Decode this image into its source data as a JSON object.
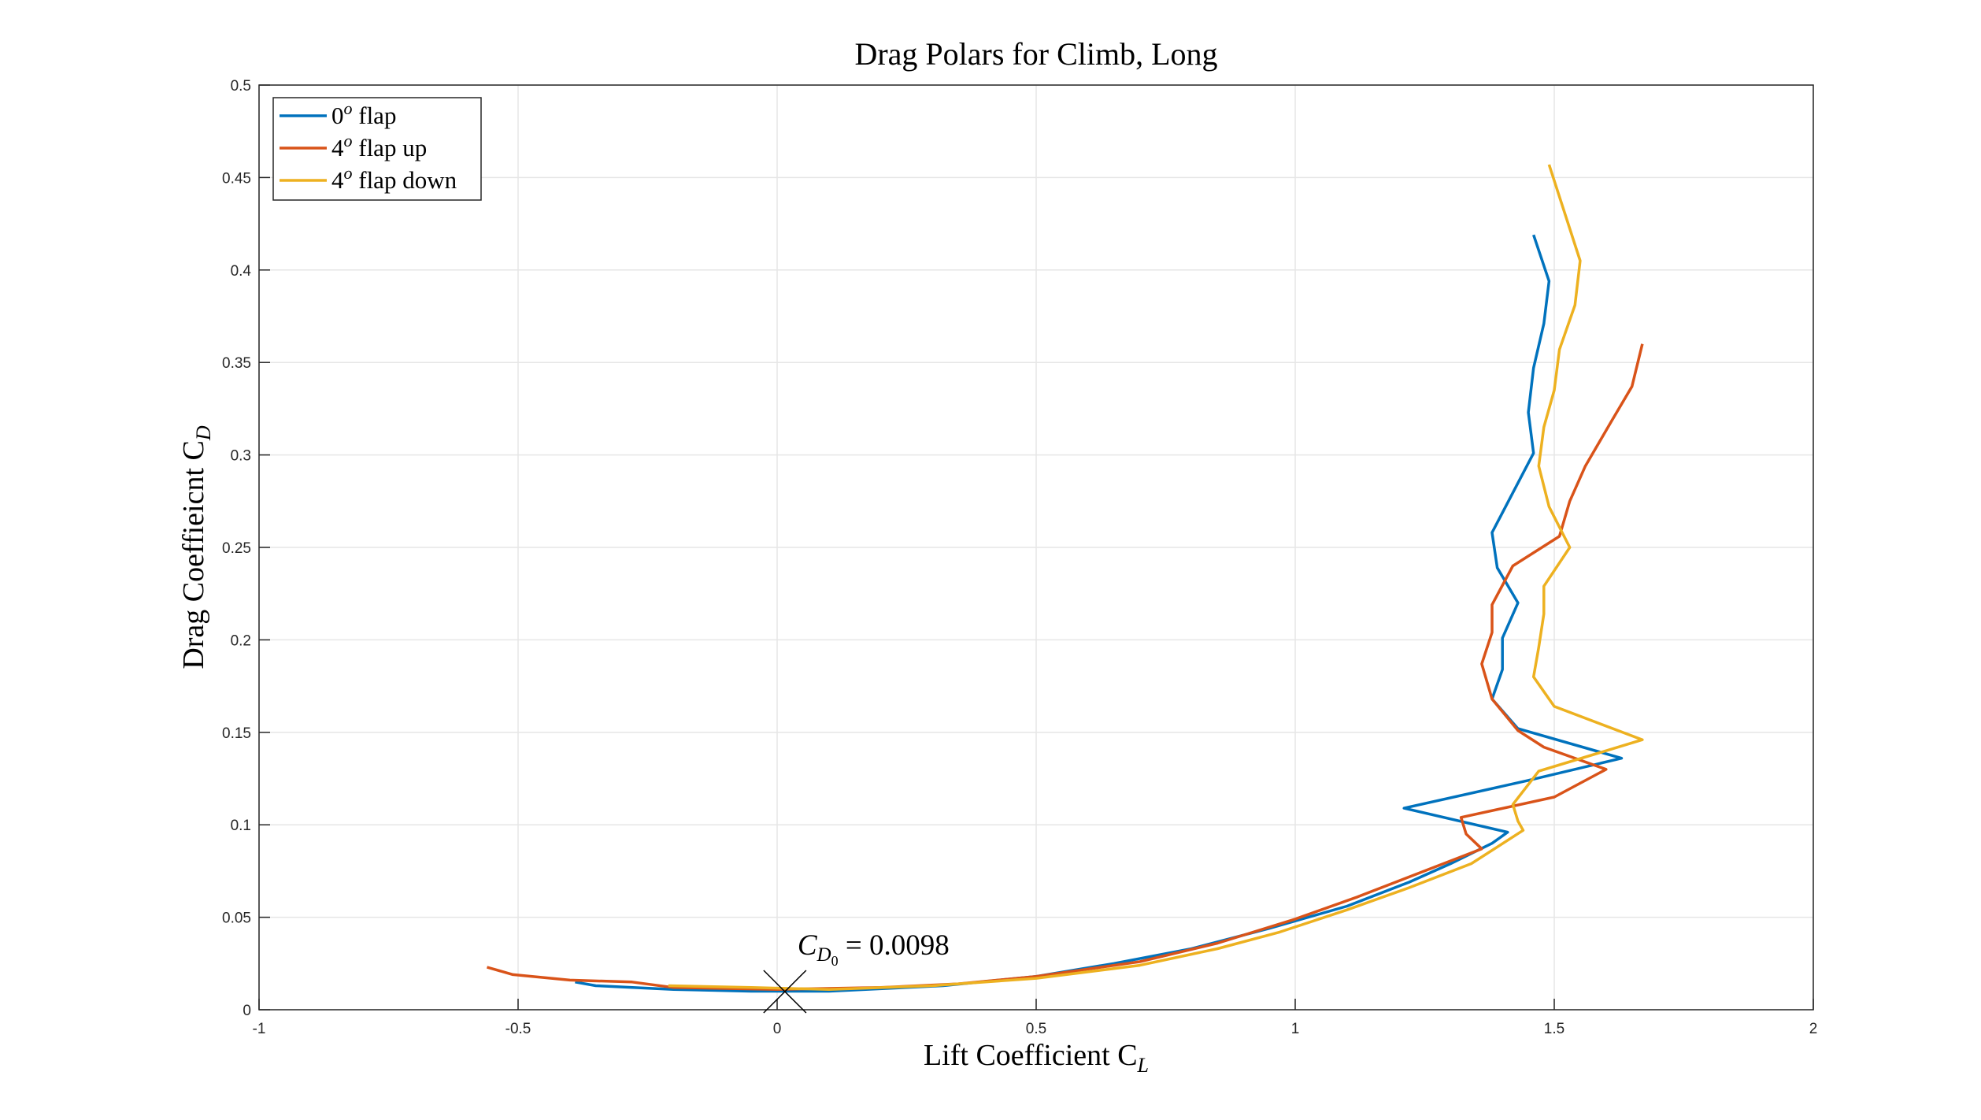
{
  "chart_data": {
    "type": "line",
    "title": "Drag Polars for Climb, Long",
    "xlabel": "Lift Coefficient C",
    "xlabel_sub": "L",
    "ylabel": "Drag Coeffieicnt C",
    "ylabel_sub": "D",
    "xlim": [
      -1,
      2
    ],
    "ylim": [
      0,
      0.5
    ],
    "xticks": [
      -1,
      -0.5,
      0,
      0.5,
      1,
      1.5,
      2
    ],
    "xtick_labels": [
      "-1",
      "-0.5",
      "0",
      "0.5",
      "1",
      "1.5",
      "2"
    ],
    "yticks": [
      0,
      0.05,
      0.1,
      0.15,
      0.2,
      0.25,
      0.3,
      0.35,
      0.4,
      0.45,
      0.5
    ],
    "ytick_labels": [
      "0",
      "0.05",
      "0.1",
      "0.15",
      "0.2",
      "0.25",
      "0.3",
      "0.35",
      "0.4",
      "0.45",
      "0.5"
    ],
    "grid": true,
    "legend_position": "top-left",
    "series": [
      {
        "name": "0",
        "name_sup": "o",
        "name_suffix": " flap",
        "color": "#0072BD",
        "points": [
          [
            -0.39,
            0.015
          ],
          [
            -0.35,
            0.013
          ],
          [
            -0.2,
            0.011
          ],
          [
            -0.05,
            0.01
          ],
          [
            0.1,
            0.01
          ],
          [
            0.32,
            0.013
          ],
          [
            0.5,
            0.018
          ],
          [
            0.65,
            0.025
          ],
          [
            0.8,
            0.033
          ],
          [
            0.95,
            0.044
          ],
          [
            1.1,
            0.056
          ],
          [
            1.22,
            0.069
          ],
          [
            1.3,
            0.079
          ],
          [
            1.38,
            0.09
          ],
          [
            1.41,
            0.096
          ],
          [
            1.21,
            0.109
          ],
          [
            1.45,
            0.124
          ],
          [
            1.63,
            0.136
          ],
          [
            1.43,
            0.152
          ],
          [
            1.38,
            0.168
          ],
          [
            1.4,
            0.184
          ],
          [
            1.4,
            0.201
          ],
          [
            1.43,
            0.22
          ],
          [
            1.39,
            0.239
          ],
          [
            1.38,
            0.258
          ],
          [
            1.46,
            0.301
          ],
          [
            1.45,
            0.323
          ],
          [
            1.46,
            0.347
          ],
          [
            1.48,
            0.371
          ],
          [
            1.49,
            0.394
          ],
          [
            1.46,
            0.419
          ]
        ]
      },
      {
        "name": "4",
        "name_sup": "o",
        "name_suffix": " flap up",
        "color": "#D95319",
        "points": [
          [
            -0.56,
            0.023
          ],
          [
            -0.51,
            0.019
          ],
          [
            -0.4,
            0.016
          ],
          [
            -0.28,
            0.015
          ],
          [
            -0.2,
            0.012
          ],
          [
            0.0,
            0.011
          ],
          [
            0.2,
            0.012
          ],
          [
            0.35,
            0.014
          ],
          [
            0.5,
            0.018
          ],
          [
            0.7,
            0.026
          ],
          [
            0.85,
            0.036
          ],
          [
            1.0,
            0.049
          ],
          [
            1.12,
            0.061
          ],
          [
            1.24,
            0.074
          ],
          [
            1.36,
            0.087
          ],
          [
            1.33,
            0.095
          ],
          [
            1.32,
            0.104
          ],
          [
            1.5,
            0.115
          ],
          [
            1.6,
            0.13
          ],
          [
            1.48,
            0.142
          ],
          [
            1.43,
            0.151
          ],
          [
            1.38,
            0.168
          ],
          [
            1.36,
            0.187
          ],
          [
            1.38,
            0.204
          ],
          [
            1.38,
            0.219
          ],
          [
            1.42,
            0.24
          ],
          [
            1.51,
            0.256
          ],
          [
            1.53,
            0.275
          ],
          [
            1.56,
            0.294
          ],
          [
            1.61,
            0.318
          ],
          [
            1.65,
            0.337
          ],
          [
            1.67,
            0.36
          ]
        ]
      },
      {
        "name": "4",
        "name_sup": "o",
        "name_suffix": " flap down",
        "color": "#EDB120",
        "points": [
          [
            -0.21,
            0.013
          ],
          [
            -0.05,
            0.012
          ],
          [
            0.1,
            0.011
          ],
          [
            0.3,
            0.013
          ],
          [
            0.5,
            0.017
          ],
          [
            0.7,
            0.024
          ],
          [
            0.85,
            0.033
          ],
          [
            0.97,
            0.042
          ],
          [
            1.1,
            0.054
          ],
          [
            1.22,
            0.066
          ],
          [
            1.34,
            0.079
          ],
          [
            1.44,
            0.097
          ],
          [
            1.43,
            0.102
          ],
          [
            1.42,
            0.111
          ],
          [
            1.47,
            0.129
          ],
          [
            1.67,
            0.146
          ],
          [
            1.5,
            0.164
          ],
          [
            1.46,
            0.18
          ],
          [
            1.47,
            0.196
          ],
          [
            1.48,
            0.214
          ],
          [
            1.48,
            0.229
          ],
          [
            1.53,
            0.25
          ],
          [
            1.49,
            0.272
          ],
          [
            1.47,
            0.294
          ],
          [
            1.48,
            0.315
          ],
          [
            1.5,
            0.335
          ],
          [
            1.51,
            0.357
          ],
          [
            1.54,
            0.381
          ],
          [
            1.55,
            0.405
          ],
          [
            1.49,
            0.457
          ]
        ]
      }
    ],
    "annotations": [
      {
        "type": "marker",
        "marker": "x",
        "x": 0.015,
        "y": 0.0098,
        "text_main": "C",
        "text_sub": "D",
        "text_subsub": "0",
        "text_rest": " = 0.0098"
      }
    ]
  }
}
